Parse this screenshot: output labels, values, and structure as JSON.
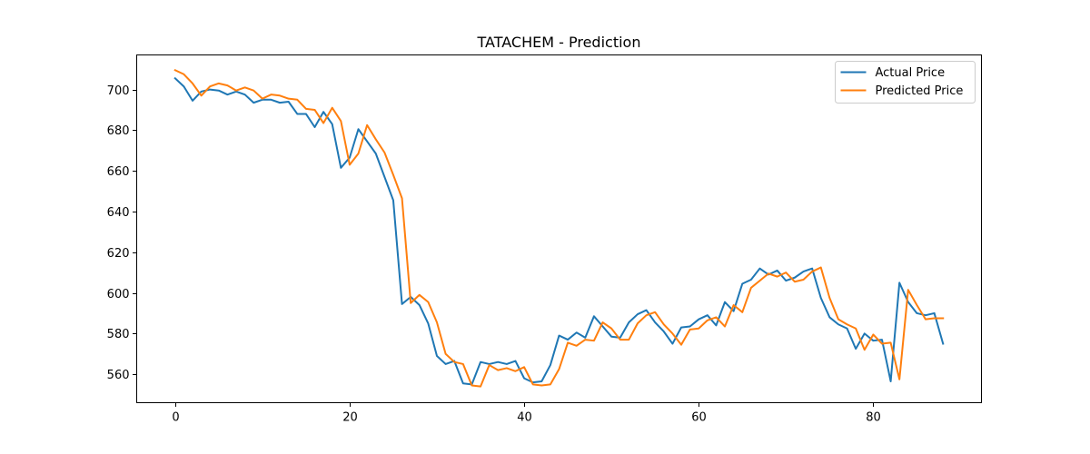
{
  "chart_data": {
    "type": "line",
    "title": "TATACHEM - Prediction",
    "xlabel": "",
    "ylabel": "",
    "xlim": [
      -4.4,
      92.4
    ],
    "ylim": [
      546,
      717
    ],
    "x_ticks": [
      0,
      20,
      40,
      60,
      80
    ],
    "y_ticks": [
      560,
      580,
      600,
      620,
      640,
      660,
      680,
      700
    ],
    "grid": false,
    "legend_position": "top-right",
    "series": [
      {
        "name": "Actual Price",
        "color": "#1f77b4",
        "values": [
          705.5,
          701.5,
          694.5,
          699,
          700,
          699.5,
          697.5,
          699,
          697.5,
          693.5,
          695,
          695,
          693.5,
          694,
          688,
          688,
          681.5,
          689,
          683,
          661.5,
          666.5,
          680.5,
          674.5,
          668.5,
          657,
          645.5,
          594.5,
          598,
          594,
          585,
          569,
          565,
          566.5,
          555.5,
          555,
          566,
          565,
          566,
          565,
          566.5,
          558,
          556,
          556.5,
          564.5,
          579,
          577,
          580.5,
          578,
          588.5,
          583.5,
          578.5,
          578,
          585.5,
          589.5,
          591.5,
          585.5,
          581,
          575,
          583,
          583.5,
          587,
          589,
          584,
          595.5,
          591,
          604.5,
          606.5,
          612,
          609,
          611,
          606,
          607.5,
          610.5,
          612,
          597.5,
          588,
          584.5,
          582.5,
          572.5,
          580,
          576.5,
          577,
          556.5,
          605,
          595.5,
          590,
          589,
          590,
          575
        ]
      },
      {
        "name": "Predicted Price",
        "color": "#ff7f0e",
        "values": [
          709.5,
          707.5,
          703,
          697,
          701.5,
          703,
          702,
          699.5,
          701,
          699.5,
          695.5,
          697.5,
          697,
          695.5,
          695,
          690.5,
          690,
          683.5,
          691,
          684.5,
          663,
          668.5,
          682.5,
          675.5,
          669,
          658,
          646.5,
          595,
          599,
          595.5,
          585.5,
          570,
          566,
          565,
          554.5,
          554,
          564.5,
          562,
          563,
          561.5,
          563.5,
          555,
          554.5,
          555,
          562.5,
          575.5,
          574,
          577,
          576.5,
          585.5,
          582.5,
          577,
          577,
          585,
          589,
          590.5,
          584.5,
          580,
          574.5,
          582,
          582.5,
          586.5,
          588,
          583.5,
          594,
          590.5,
          602.5,
          606,
          609.5,
          608,
          610,
          605.5,
          606.5,
          610.5,
          612.5,
          597.5,
          587,
          584.5,
          582.5,
          572,
          579.5,
          575,
          575.5,
          557.5,
          601.5,
          594,
          587,
          587.5,
          587.5
        ]
      }
    ]
  }
}
